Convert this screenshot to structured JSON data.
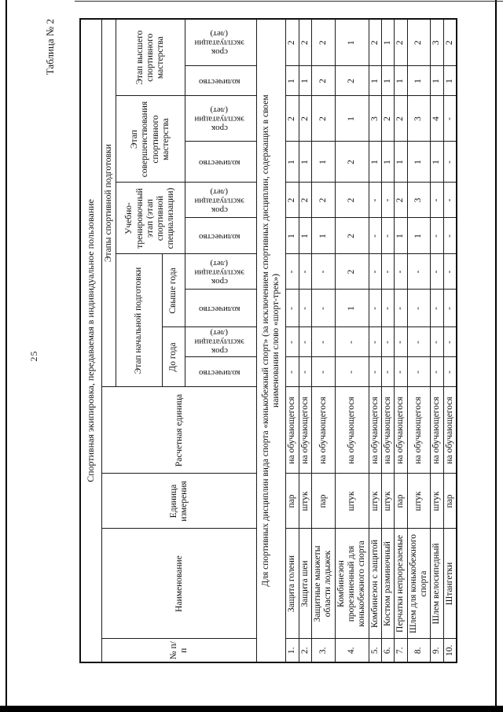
{
  "page": {
    "number": "25",
    "caption": "Таблица № 2"
  },
  "colors": {
    "ink": "#1a1a1a",
    "paper": "#ffffff"
  },
  "table": {
    "title": "Спортивная экипировка, передаваемая в индивидуальное пользование",
    "header": {
      "num": "№ п/п",
      "name": "Наименование",
      "unit": "Единица измерения",
      "calc_unit": "Расчетная единица",
      "stages_group": "Этапы спортивной подготовки",
      "stages": [
        {
          "label": "Этап начальной подготовки",
          "sub": [
            "До года",
            "Свыше года"
          ]
        },
        {
          "label": "Учебно-тренировочный этап (этап спортивной специализации)"
        },
        {
          "label": "Этап совершенствования спортивного мастерства"
        },
        {
          "label": "Этап высшего спортивного мастерства"
        }
      ],
      "qty_label": "количество",
      "life_label": "срок эксплуатации (лет)"
    },
    "section_note": "Для спортивных дисциплин вида спорта «конькобежный спорт» (за исключением спортивных дисциплин, содержащих в своем наименовании слово «шорт-трек»)",
    "rows": [
      {
        "num": "1.",
        "name": "Защита голени",
        "unit": "пар",
        "calc_unit": "на обучающегося",
        "values": [
          "-",
          "-",
          "-",
          "-",
          "1",
          "2",
          "1",
          "2",
          "1",
          "2"
        ]
      },
      {
        "num": "2.",
        "name": "Защита шеи",
        "unit": "штук",
        "calc_unit": "на обучающегося",
        "values": [
          "-",
          "-",
          "-",
          "-",
          "1",
          "2",
          "1",
          "2",
          "1",
          "2"
        ]
      },
      {
        "num": "3.",
        "name": "Защитные манжеты области лодыжек",
        "unit": "пар",
        "calc_unit": "на обучающегося",
        "values": [
          "-",
          "-",
          "-",
          "-",
          "1",
          "2",
          "1",
          "2",
          "2",
          "2"
        ]
      },
      {
        "num": "4.",
        "name": "Комбинезон прорезиненный для конькобежного спорта",
        "unit": "штук",
        "calc_unit": "на обучающегося",
        "values": [
          "-",
          "-",
          "1",
          "2",
          "2",
          "2",
          "2",
          "1",
          "2",
          "1"
        ]
      },
      {
        "num": "5.",
        "name": "Комбинезон с защитой",
        "unit": "штук",
        "calc_unit": "на обучающегося",
        "values": [
          "-",
          "-",
          "-",
          "-",
          "-",
          "-",
          "1",
          "3",
          "1",
          "2"
        ]
      },
      {
        "num": "6.",
        "name": "Костюм разминочный",
        "unit": "штук",
        "calc_unit": "на обучающегося",
        "values": [
          "-",
          "-",
          "-",
          "-",
          "-",
          "-",
          "1",
          "2",
          "1",
          "1"
        ]
      },
      {
        "num": "7.",
        "name": "Перчатки непрорезаемые",
        "unit": "пар",
        "calc_unit": "на обучающегося",
        "values": [
          "-",
          "-",
          "-",
          "-",
          "1",
          "2",
          "1",
          "2",
          "1",
          "2"
        ]
      },
      {
        "num": "8.",
        "name": "Шлем для конькобежного спорта",
        "unit": "штук",
        "calc_unit": "на обучающегося",
        "values": [
          "-",
          "-",
          "-",
          "-",
          "1",
          "3",
          "1",
          "3",
          "1",
          "2"
        ]
      },
      {
        "num": "9.",
        "name": "Шлем велосипедный",
        "unit": "штук",
        "calc_unit": "на обучающегося",
        "values": [
          "-",
          "-",
          "-",
          "-",
          "-",
          "-",
          "1",
          "4",
          "1",
          "3"
        ]
      },
      {
        "num": "10.",
        "name": "Штангетки",
        "unit": "пар",
        "calc_unit": "на обучающегося",
        "values": [
          "-",
          "-",
          "-",
          "-",
          "-",
          "-",
          "-",
          "-",
          "1",
          "2"
        ]
      }
    ]
  }
}
